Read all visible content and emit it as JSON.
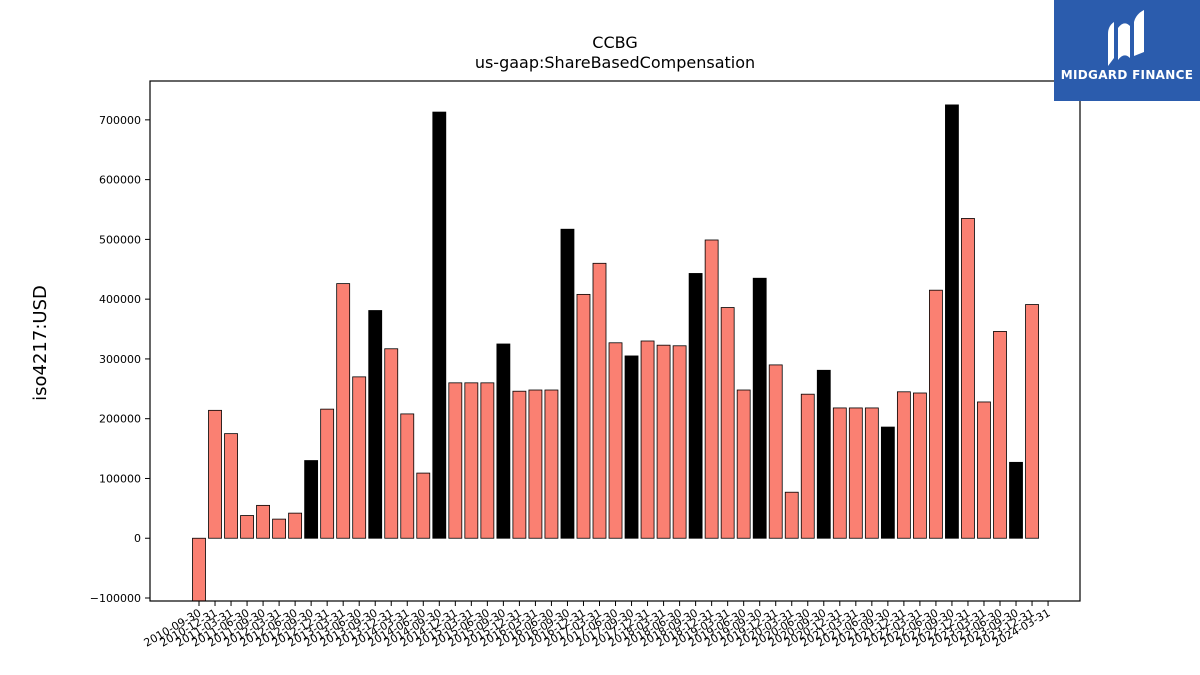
{
  "chart_data": {
    "type": "bar",
    "title": "CCBG",
    "subtitle": "us-gaap:ShareBasedCompensation",
    "ylabel": "iso4217:USD",
    "xlabel": "",
    "ylim": [
      -105000,
      765000
    ],
    "yticks": [
      -100000,
      0,
      100000,
      200000,
      300000,
      400000,
      500000,
      600000,
      700000
    ],
    "colors": {
      "regular": "#fa8072",
      "annual": "#000000",
      "edge": "#000000"
    },
    "categories": [
      "2010-09-30",
      "2010-12-31",
      "2011-03-31",
      "2011-06-30",
      "2011-09-30",
      "2012-03-31",
      "2012-06-30",
      "2012-09-30",
      "2012-12-31",
      "2013-03-31",
      "2013-06-30",
      "2013-09-30",
      "2013-12-31",
      "2014-03-31",
      "2014-06-30",
      "2014-09-30",
      "2014-12-31",
      "2015-03-31",
      "2015-06-30",
      "2015-09-30",
      "2015-12-31",
      "2016-03-31",
      "2016-06-30",
      "2016-09-30",
      "2016-12-31",
      "2017-03-31",
      "2017-06-30",
      "2017-09-30",
      "2017-12-31",
      "2018-03-31",
      "2018-06-30",
      "2018-09-30",
      "2018-12-31",
      "2019-03-31",
      "2019-06-30",
      "2019-09-30",
      "2019-12-31",
      "2020-03-31",
      "2020-06-30",
      "2020-09-30",
      "2020-12-31",
      "2021-03-31",
      "2021-06-30",
      "2021-09-30",
      "2021-12-31",
      "2022-03-31",
      "2022-06-30",
      "2022-09-30",
      "2022-12-31",
      "2023-03-31",
      "2023-06-30",
      "2023-09-30",
      "2023-12-31",
      "2024-03-31"
    ],
    "values": [
      -106000,
      214000,
      175000,
      38000,
      55000,
      32000,
      42000,
      130000,
      216000,
      426000,
      270000,
      381000,
      317000,
      208000,
      109000,
      713000,
      260000,
      260000,
      260000,
      325000,
      246000,
      248000,
      248000,
      517000,
      408000,
      460000,
      327000,
      305000,
      330000,
      323000,
      322000,
      443000,
      499000,
      386000,
      248000,
      435000,
      290000,
      77000,
      241000,
      281000,
      218000,
      218000,
      218000,
      186000,
      245000,
      243000,
      415000,
      725000,
      535000,
      228000,
      346000,
      127000,
      391000,
      0
    ],
    "annual": [
      false,
      false,
      false,
      false,
      false,
      false,
      false,
      true,
      false,
      false,
      false,
      true,
      false,
      false,
      false,
      true,
      false,
      false,
      false,
      true,
      false,
      false,
      false,
      true,
      false,
      false,
      false,
      true,
      false,
      false,
      false,
      true,
      false,
      false,
      false,
      true,
      false,
      false,
      false,
      true,
      false,
      false,
      false,
      true,
      false,
      false,
      false,
      true,
      false,
      false,
      false,
      true,
      false,
      false
    ]
  },
  "logo": {
    "name": "MIDGARD FINANCE"
  }
}
